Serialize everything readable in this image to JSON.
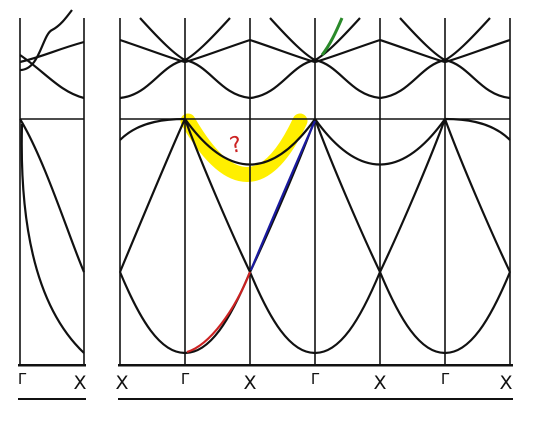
{
  "figure": {
    "left_panel_labels": [
      "Γ",
      "X"
    ],
    "right_panel_labels": [
      "X",
      "Γ",
      "X",
      "Γ",
      "X",
      "Γ",
      "X"
    ],
    "annotation": "?",
    "colors": {
      "line": "#111111",
      "highlight": "#ffef00",
      "red_segment": "#cc2222",
      "blue_segment": "#1a1aa0",
      "green_segment": "#2a8a2a",
      "annotation": "#cc2222"
    }
  }
}
